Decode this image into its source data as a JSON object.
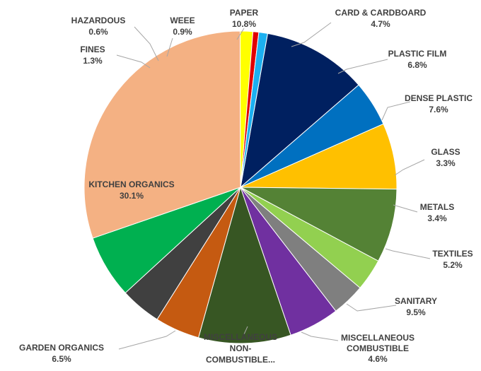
{
  "chart_data": {
    "type": "pie",
    "slices": [
      {
        "label": "PAPER",
        "value": 10.8,
        "value_label": "10.8%",
        "color": "#002060"
      },
      {
        "label": "CARD & CARDBOARD",
        "value": 4.7,
        "value_label": "4.7%",
        "color": "#0070C0"
      },
      {
        "label": "PLASTIC FILM",
        "value": 6.8,
        "value_label": "6.8%",
        "color": "#FFC000"
      },
      {
        "label": "DENSE PLASTIC",
        "value": 7.6,
        "value_label": "7.6%",
        "color": "#548235"
      },
      {
        "label": "GLASS",
        "value": 3.3,
        "value_label": "3.3%",
        "color": "#92D050"
      },
      {
        "label": "METALS",
        "value": 3.4,
        "value_label": "3.4%",
        "color": "#7F7F7F"
      },
      {
        "label": "TEXTILES",
        "value": 5.2,
        "value_label": "5.2%",
        "color": "#7030A0"
      },
      {
        "label": "SANITARY",
        "value": 9.5,
        "value_label": "9.5%",
        "color": "#375623"
      },
      {
        "label": "MISCELLANEOUS COMBUSTIBLE",
        "value": 4.6,
        "value_label": "4.6%",
        "color": "#C55A11"
      },
      {
        "label": "MISCELLANEOUS NON-COMBUSTIBLE...",
        "value": 4.2,
        "value_label": "",
        "color": "#404040"
      },
      {
        "label": "GARDEN ORGANICS",
        "value": 6.5,
        "value_label": "6.5%",
        "color": "#00B050"
      },
      {
        "label": "KITCHEN ORGANICS",
        "value": 30.1,
        "value_label": "30.1%",
        "color": "#F4B183"
      },
      {
        "label": "FINES",
        "value": 1.3,
        "value_label": "1.3%",
        "color": "#FFFF00"
      },
      {
        "label": "HAZARDOUS",
        "value": 0.6,
        "value_label": "0.6%",
        "color": "#E00000"
      },
      {
        "label": "WEEE",
        "value": 0.9,
        "value_label": "0.9%",
        "color": "#1CB0F0"
      }
    ],
    "title": "",
    "legend": "none",
    "label_color": "#404040"
  }
}
